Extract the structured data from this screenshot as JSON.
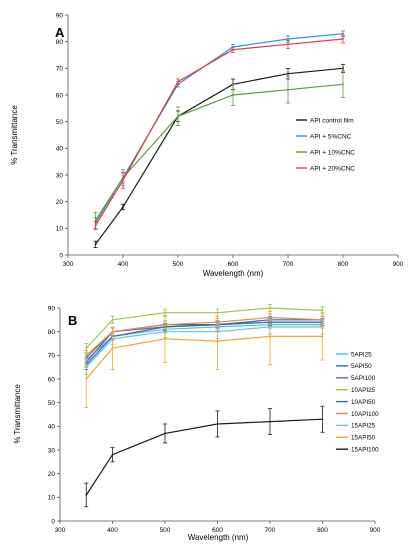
{
  "chart_data": [
    {
      "type": "line",
      "panel_label": "A",
      "xlabel": "Wavelength  (nm)",
      "ylabel": "% Transmittance",
      "xlim": [
        300,
        900
      ],
      "ylim": [
        0,
        90
      ],
      "xticks": [
        "300",
        "400",
        "500",
        "600",
        "700",
        "800",
        "900"
      ],
      "yticks": [
        "0",
        "10",
        "20",
        "30",
        "40",
        "50",
        "60",
        "70",
        "80",
        "90"
      ],
      "grid": false,
      "legend_position": "right",
      "x": [
        350,
        400,
        500,
        600,
        700,
        800
      ],
      "series": [
        {
          "name": "API control film",
          "color": "#1a1a1a",
          "values": [
            4,
            18,
            52,
            64,
            68,
            70
          ],
          "errors": [
            1.2,
            1,
            2,
            2,
            2,
            1.5
          ]
        },
        {
          "name": "API + 5%CNC",
          "color": "#2e8fd4",
          "values": [
            12,
            29,
            64,
            78,
            81,
            83
          ],
          "errors": [
            2,
            2,
            1,
            1,
            1.2,
            1
          ]
        },
        {
          "name": "API + 10%CNC",
          "color": "#5a9e3a",
          "values": [
            13,
            29,
            52,
            60,
            62,
            64
          ],
          "errors": [
            3,
            3,
            3.5,
            4,
            5,
            5
          ]
        },
        {
          "name": "API + 20%CNC",
          "color": "#e63c3c",
          "values": [
            11,
            28,
            65,
            77,
            79,
            81
          ],
          "errors": [
            1.5,
            3,
            1,
            1,
            1.5,
            1.5
          ]
        }
      ]
    },
    {
      "type": "line",
      "panel_label": "B",
      "xlabel": "Wavelength (nm)",
      "ylabel": "% Transmittance",
      "xlim": [
        300,
        900
      ],
      "ylim": [
        0,
        90
      ],
      "xticks": [
        "300",
        "400",
        "500",
        "600",
        "700",
        "800",
        "900"
      ],
      "yticks": [
        "0",
        "10",
        "20",
        "30",
        "40",
        "50",
        "60",
        "70",
        "80",
        "90"
      ],
      "grid": false,
      "legend_position": "right",
      "x": [
        350,
        400,
        500,
        600,
        700,
        800
      ],
      "series": [
        {
          "name": "5API25",
          "color": "#4bc3e0",
          "values": [
            68,
            78,
            81,
            82,
            83,
            83
          ],
          "errors": [
            2,
            1.5,
            1.5,
            1.5,
            1.5,
            1.5
          ]
        },
        {
          "name": "5API50",
          "color": "#2a6fb5",
          "values": [
            67,
            80,
            83,
            83,
            85,
            85
          ],
          "errors": [
            2,
            1.5,
            1.5,
            1.5,
            1.5,
            1.5
          ]
        },
        {
          "name": "5API100",
          "color": "#7b5fb0",
          "values": [
            69,
            80,
            82,
            83,
            84,
            84
          ],
          "errors": [
            2,
            1.5,
            1.5,
            1.5,
            1.5,
            1.5
          ]
        },
        {
          "name": "10API25",
          "color": "#9ac94a",
          "values": [
            73,
            85,
            88,
            88,
            90,
            89
          ],
          "errors": [
            2,
            1.5,
            1.5,
            1.5,
            1.5,
            1.5
          ]
        },
        {
          "name": "10API50",
          "color": "#2f6ea0",
          "values": [
            66,
            78,
            82,
            83,
            84,
            84
          ],
          "errors": [
            2,
            1.5,
            1.5,
            1.5,
            1.5,
            1.5
          ]
        },
        {
          "name": "10API100",
          "color": "#e58a4e",
          "values": [
            70,
            80,
            83,
            84,
            86,
            85
          ],
          "errors": [
            2,
            1.5,
            1.5,
            1.5,
            1.5,
            1.5
          ]
        },
        {
          "name": "15API25",
          "color": "#6fc2d2",
          "values": [
            65,
            77,
            80,
            80,
            82,
            82
          ],
          "errors": [
            3,
            2.5,
            2.5,
            3,
            3,
            3
          ]
        },
        {
          "name": "15API50",
          "color": "#f5a623",
          "values": [
            60,
            73,
            77,
            76,
            78,
            78
          ],
          "errors": [
            12,
            9,
            10,
            12,
            12,
            10
          ]
        },
        {
          "name": "15API100",
          "color": "#1a1a1a",
          "values": [
            11,
            28,
            37,
            41,
            42,
            43
          ],
          "errors": [
            5,
            3,
            4,
            5.5,
            5.5,
            5.5
          ]
        }
      ]
    }
  ]
}
